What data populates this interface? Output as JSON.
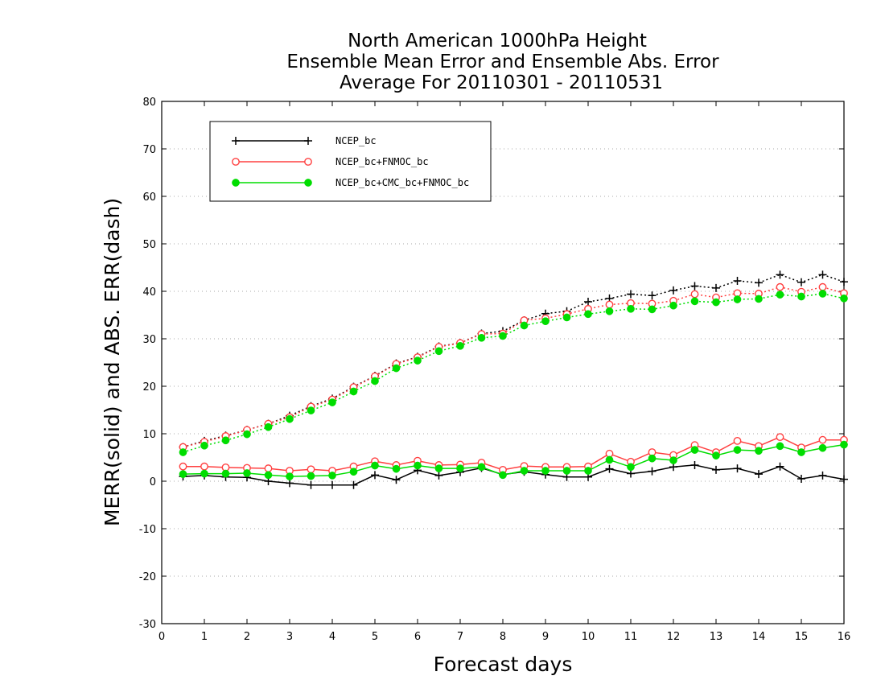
{
  "chart_data": {
    "type": "line",
    "title": [
      "North American 1000hPa Height",
      "Ensemble Mean Error and Ensemble Abs. Error",
      "Average For 20110301 - 20110531"
    ],
    "xlabel": "Forecast days",
    "ylabel": "MERR(solid) and ABS. ERR(dash)",
    "xlim": [
      0,
      16
    ],
    "ylim": [
      -30,
      80
    ],
    "xticks": [
      "0",
      "1",
      "2",
      "3",
      "4",
      "5",
      "6",
      "7",
      "8",
      "9",
      "10",
      "11",
      "12",
      "13",
      "14",
      "15",
      "16"
    ],
    "yticks": [
      -30,
      -20,
      -10,
      0,
      10,
      20,
      30,
      40,
      50,
      60,
      70,
      80
    ],
    "grid": "horizontal dotted",
    "legend_position": "top-left",
    "x": [
      0.5,
      1.0,
      1.5,
      2.0,
      2.5,
      3.0,
      3.5,
      4.0,
      4.5,
      5.0,
      5.5,
      6.0,
      6.5,
      7.0,
      7.5,
      8.0,
      8.5,
      9.0,
      9.5,
      10.0,
      10.5,
      11.0,
      11.5,
      12.0,
      12.5,
      13.0,
      13.5,
      14.0,
      14.5,
      15.0,
      15.5,
      16.0
    ],
    "series": [
      {
        "name": "NCEP_bc",
        "color": "#000000",
        "marker": "plus",
        "merr": [
          1.0,
          1.2,
          0.9,
          0.8,
          0.0,
          -0.4,
          -0.8,
          -0.8,
          -0.8,
          1.3,
          0.3,
          2.3,
          1.2,
          1.9,
          2.8,
          1.4,
          2.0,
          1.4,
          0.9,
          0.9,
          2.6,
          1.6,
          2.1,
          3.0,
          3.4,
          2.4,
          2.7,
          1.5,
          3.1,
          0.5,
          1.2,
          0.4
        ],
        "abs_err": [
          7.2,
          8.5,
          9.6,
          10.8,
          12.1,
          13.8,
          15.8,
          17.4,
          19.9,
          22.2,
          24.8,
          26.2,
          28.4,
          29.1,
          31.1,
          31.6,
          33.9,
          35.3,
          35.8,
          37.8,
          38.5,
          39.4,
          39.1,
          40.2,
          41.1,
          40.7,
          42.2,
          41.8,
          43.5,
          41.9,
          43.5,
          42.0
        ]
      },
      {
        "name": "NCEP_bc+FNMOC_bc",
        "color": "#ff4040",
        "marker": "open-circle",
        "merr": [
          3.1,
          3.1,
          2.9,
          2.8,
          2.7,
          2.2,
          2.5,
          2.2,
          3.1,
          4.2,
          3.4,
          4.3,
          3.4,
          3.5,
          3.9,
          2.4,
          3.2,
          3.0,
          3.0,
          3.1,
          5.8,
          4.1,
          6.1,
          5.5,
          7.6,
          6.1,
          8.5,
          7.4,
          9.3,
          7.1,
          8.7,
          8.7
        ]
      },
      {
        "name": "NCEP_bc+CMC_bc+FNMOC_bc",
        "color": "#00dd00",
        "marker": "filled-circle",
        "merr": [
          1.5,
          1.6,
          1.6,
          1.7,
          1.3,
          1.0,
          1.1,
          1.2,
          2.0,
          3.3,
          2.6,
          3.3,
          2.7,
          2.7,
          3.0,
          1.3,
          2.2,
          2.2,
          2.2,
          2.2,
          4.5,
          3.0,
          4.8,
          4.4,
          6.6,
          5.4,
          6.6,
          6.4,
          7.4,
          6.1,
          7.0,
          7.7
        ],
        "abs_err": [
          6.1,
          7.5,
          8.6,
          9.9,
          11.4,
          13.1,
          14.9,
          16.6,
          18.9,
          21.1,
          23.8,
          25.4,
          27.4,
          28.5,
          30.2,
          30.6,
          32.8,
          33.7,
          34.5,
          35.2,
          35.8,
          36.3,
          36.2,
          37.0,
          37.9,
          37.7,
          38.3,
          38.4,
          39.3,
          38.9,
          39.5,
          38.5
        ]
      }
    ],
    "red_abs_err": [
      7.2,
      8.3,
      9.5,
      10.8,
      12.1,
      13.5,
      15.7,
      17.2,
      19.8,
      22.1,
      24.7,
      26.1,
      28.3,
      29.1,
      31.0,
      31.1,
      33.9,
      34.3,
      35.2,
      36.3,
      37.2,
      37.5,
      37.4,
      38.0,
      39.4,
      38.7,
      39.6,
      39.5,
      40.9,
      39.9,
      40.9,
      39.6
    ]
  }
}
